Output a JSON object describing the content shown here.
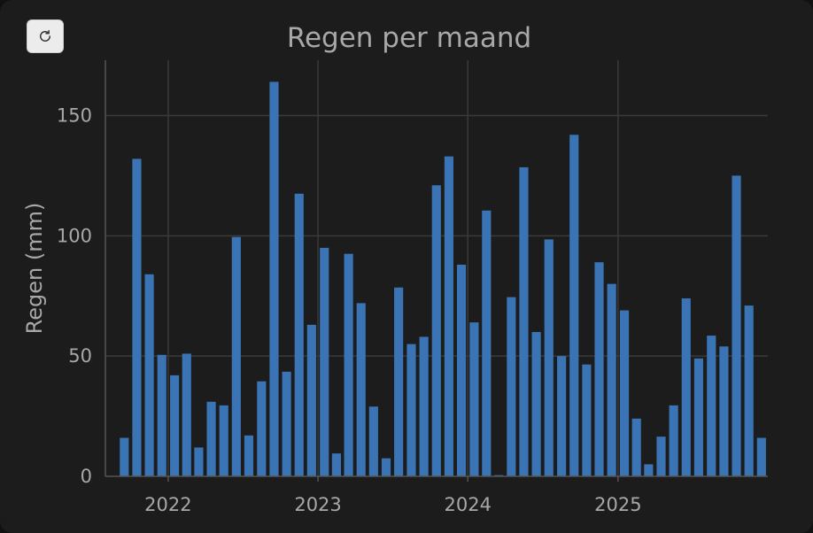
{
  "reset_button": {
    "icon": "refresh-icon"
  },
  "chart_data": {
    "type": "bar",
    "title": "Regen per maand",
    "xlabel": "",
    "ylabel": "Regen (mm)",
    "ylim": [
      0,
      173
    ],
    "yticks": [
      0,
      50,
      100,
      150
    ],
    "xticks": [
      {
        "date": "2022-01-01",
        "label": "2022"
      },
      {
        "date": "2023-01-01",
        "label": "2023"
      },
      {
        "date": "2024-01-01",
        "label": "2024"
      },
      {
        "date": "2025-01-01",
        "label": "2025"
      }
    ],
    "xlim": [
      "2021-08-01",
      "2026-01-01"
    ],
    "grid": true,
    "bar_color": "#3a74b4",
    "x": [
      "2021-09",
      "2021-10",
      "2021-11",
      "2021-12",
      "2022-01",
      "2022-02",
      "2022-03",
      "2022-04",
      "2022-05",
      "2022-06",
      "2022-07",
      "2022-08",
      "2022-09",
      "2022-10",
      "2022-11",
      "2022-12",
      "2023-01",
      "2023-02",
      "2023-03",
      "2023-04",
      "2023-05",
      "2023-06",
      "2023-07",
      "2023-08",
      "2023-09",
      "2023-10",
      "2023-11",
      "2023-12",
      "2024-01",
      "2024-02",
      "2024-03",
      "2024-04",
      "2024-05",
      "2024-06",
      "2024-07",
      "2024-08",
      "2024-09",
      "2024-10",
      "2024-11",
      "2024-12",
      "2025-01",
      "2025-02",
      "2025-03",
      "2025-04",
      "2025-05",
      "2025-06",
      "2025-07",
      "2025-08",
      "2025-09",
      "2025-10",
      "2025-11",
      "2025-12"
    ],
    "values": [
      16,
      132,
      84,
      50.5,
      42,
      51,
      12,
      31,
      29.5,
      99.5,
      17,
      39.5,
      164,
      43.5,
      117.5,
      63,
      95,
      9.5,
      92.5,
      72,
      29,
      7.5,
      78.5,
      55,
      58,
      121,
      133,
      88,
      64,
      110.5,
      0.5,
      74.5,
      128.5,
      60,
      98.5,
      50,
      142,
      46.5,
      89,
      80,
      69,
      24,
      5,
      16.5,
      29.5,
      74,
      49,
      58.5,
      54,
      125,
      71,
      16
    ]
  }
}
